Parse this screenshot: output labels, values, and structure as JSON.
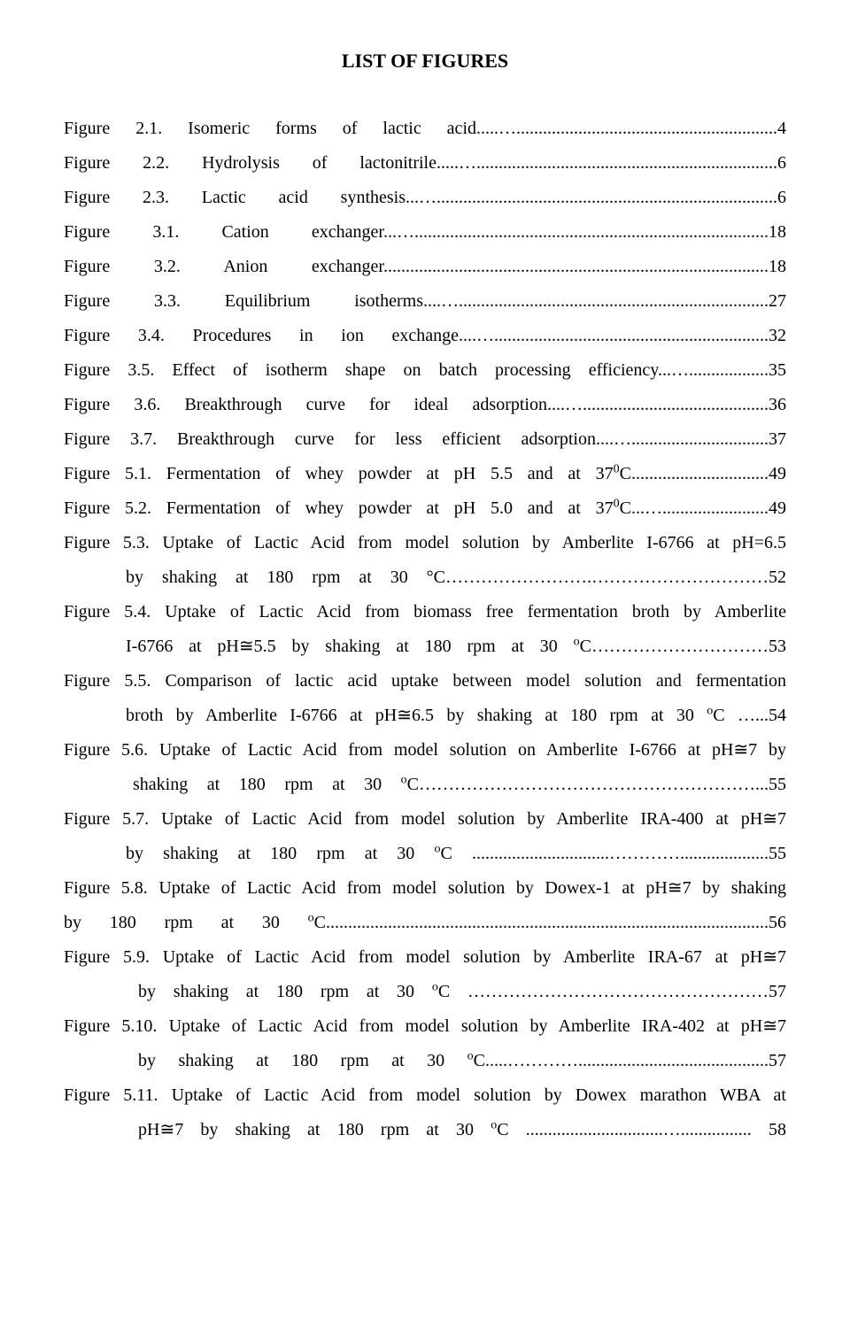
{
  "title": "LIST OF FIGURES",
  "items": [
    {
      "label": "Figure 2.1. Isomeric forms of lactic acid.....…...........................................................4"
    },
    {
      "label": "Figure 2.2. Hydrolysis of lactonitrile.....…....................................................................6"
    },
    {
      "label": "Figure 2.3. Lactic acid synthesis...….............................................................................6"
    },
    {
      "label": "Figure 3.1. Cation exchanger...…................................................................................18"
    },
    {
      "label": "Figure 3.2. Anion exchanger.......................................................................................18"
    },
    {
      "label": "Figure 3.3. Equilibrium isotherms....…......................................................................27"
    },
    {
      "label": "Figure 3.4. Procedures in ion exchange....…..............................................................32"
    },
    {
      "label": "Figure 3.5. Effect of isotherm shape on batch processing efficiency...…..................35"
    },
    {
      "label": "Figure 3.6. Breakthrough curve for ideal adsorption....…..........................................36"
    },
    {
      "label": "Figure 3.7. Breakthrough curve for less efficient adsorption....…...............................37"
    },
    {
      "label_html": "Figure 5.1. Fermentation of whey powder at pH 5.5 and at 37<sup>0</sup>C...............................49"
    },
    {
      "label_html": "Figure 5.2. Fermentation of whey powder at pH 5.0 and at 37<sup>0</sup>C...…........................49"
    },
    {
      "multi": true,
      "lines": [
        {
          "text": "Figure 5.3. Uptake of Lactic Acid from model solution by Amberlite I-6766 at pH=6.5",
          "indent": "none",
          "page": ""
        },
        {
          "text": "by shaking at 180 rpm at 30 °C…………………….…………………………52",
          "indent": "cont-indent",
          "page": ""
        }
      ]
    },
    {
      "multi": true,
      "lines": [
        {
          "text": "Figure 5.4. Uptake of Lactic Acid from biomass free fermentation broth by Amberlite",
          "indent": "none",
          "page": ""
        },
        {
          "text_html": "I-6766 at pH≅5.5 by shaking at 180 rpm at 30 <sup>o</sup>C…………………………53",
          "indent": "cont-indent",
          "page": ""
        }
      ]
    },
    {
      "multi": true,
      "lines": [
        {
          "text": "Figure 5.5. Comparison of lactic acid uptake between model solution and fermentation",
          "indent": "none"
        },
        {
          "text_html": "broth by Amberlite I-6766 at pH≅6.5 by shaking at 180 rpm at 30 <sup>o</sup>C …...54",
          "indent": "cont-indent"
        }
      ]
    },
    {
      "multi": true,
      "lines": [
        {
          "text": "Figure 5.6. Uptake of Lactic Acid from model solution on Amberlite I-6766 at pH≅7 by",
          "indent": "none"
        },
        {
          "text_html": "shaking at 180 rpm at 30 <sup>o</sup>C…………………………………………………...55",
          "indent": "cont-indent-mid"
        }
      ]
    },
    {
      "multi": true,
      "lines": [
        {
          "text": "Figure 5.7. Uptake of Lactic Acid from model solution by Amberlite IRA-400 at pH≅7",
          "indent": "none"
        },
        {
          "text_html": "by shaking at 180 rpm at 30 <sup>o</sup>C ...............................…………....................55",
          "indent": "cont-indent"
        }
      ]
    },
    {
      "multi": true,
      "lines": [
        {
          "text": "Figure 5.8. Uptake of Lactic Acid from model solution by Dowex-1 at pH≅7 by shaking",
          "indent": "none"
        },
        {
          "text_html": "by 180 rpm at 30 <sup>o</sup>C....................................................................................................56",
          "indent": "none"
        }
      ]
    },
    {
      "multi": true,
      "lines": [
        {
          "text": "Figure 5.9. Uptake of Lactic Acid from model solution by Amberlite IRA-67 at pH≅7",
          "indent": "none"
        },
        {
          "text_html": "by shaking at 180 rpm at 30 <sup>o</sup>C ……………………………………………57",
          "indent": "cont-indent2"
        }
      ]
    },
    {
      "multi": true,
      "lines": [
        {
          "text": "Figure 5.10. Uptake of Lactic Acid from model solution by Amberlite IRA-402 at pH≅7",
          "indent": "none"
        },
        {
          "text_html": "by shaking at 180 rpm at 30 <sup>o</sup>C.....…………...........................................57",
          "indent": "cont-indent2"
        }
      ]
    },
    {
      "multi": true,
      "lines": [
        {
          "text": "Figure 5.11. Uptake of Lactic Acid from model solution by Dowex marathon WBA at",
          "indent": "none"
        },
        {
          "text_html": "pH≅7 by shaking at 180 rpm at 30 <sup>o</sup>C ...............................…................ 58",
          "indent": "cont-indent2"
        }
      ]
    }
  ]
}
